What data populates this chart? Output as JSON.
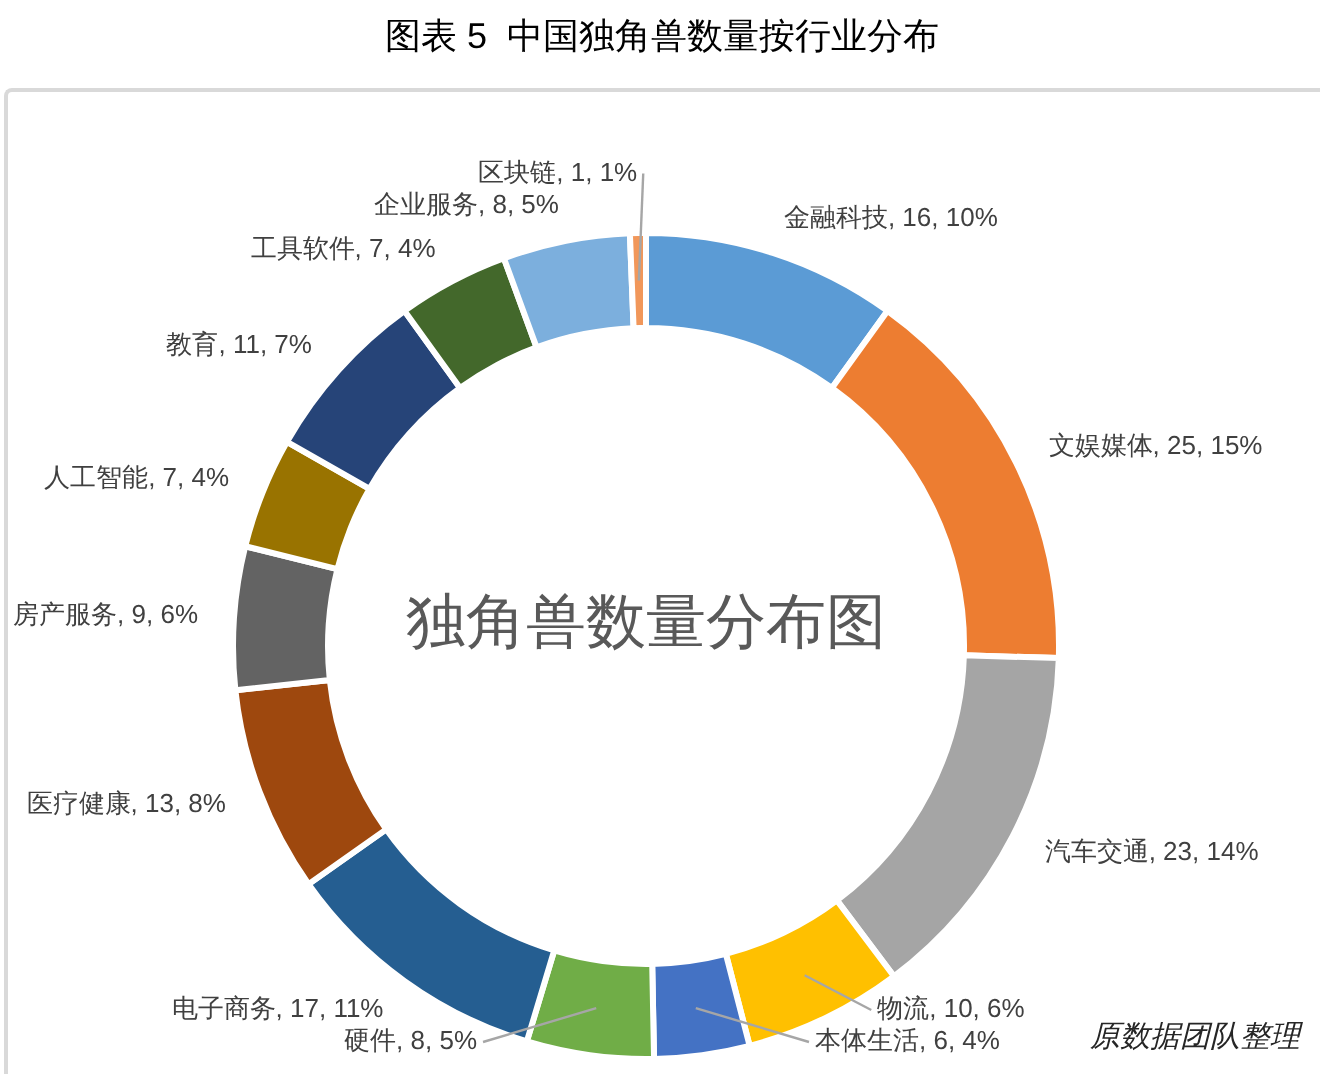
{
  "chart_data": {
    "type": "donut",
    "title": "图表 5  中国独角兽数量按行业分布",
    "subtitle": "独角兽数量分布图",
    "categories": [
      "金融科技",
      "文娱媒体",
      "汽车交通",
      "物流",
      "本体生活",
      "硬件",
      "电子商务",
      "医疗健康",
      "房产服务",
      "人工智能",
      "教育",
      "工具软件",
      "企业服务",
      "区块链"
    ],
    "values": [
      16,
      25,
      23,
      10,
      6,
      8,
      17,
      13,
      9,
      7,
      11,
      7,
      8,
      1
    ],
    "colors": [
      "#5b9bd5",
      "#ed7d31",
      "#a5a5a5",
      "#ffc000",
      "#4472c4",
      "#70ad47",
      "#255e91",
      "#9e480e",
      "#636363",
      "#997300",
      "#264478",
      "#43682b",
      "#7cafdd",
      "#f1975a"
    ],
    "value_labels": [
      "16, 10%",
      "25, 15%",
      "23, 14%",
      "10, 6%",
      "6, 4%",
      "8, 5%",
      "17, 11%",
      "13, 8%",
      "9, 6%",
      "7, 4%",
      "11, 7%",
      "7, 4%",
      "8, 5%",
      "1, 1%"
    ],
    "annotations": [
      "原数据团队整理"
    ]
  }
}
